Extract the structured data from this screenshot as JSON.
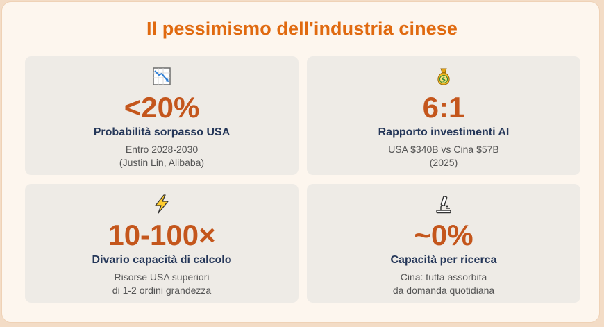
{
  "title": "Il pessimismo dell'industria cinese",
  "cards": [
    {
      "icon": "chart-decreasing-icon",
      "value": "<20%",
      "label": "Probabilità sorpasso USA",
      "lines": [
        "Entro 2028-2030",
        "(Justin Lin, Alibaba)"
      ]
    },
    {
      "icon": "money-bag-icon",
      "value": "6:1",
      "label": "Rapporto investimenti AI",
      "lines": [
        "USA $340B vs Cina $57B",
        "(2025)"
      ]
    },
    {
      "icon": "lightning-icon",
      "value": "10-100×",
      "label": "Divario capacità di calcolo",
      "lines": [
        "Risorse USA superiori",
        "di 1-2 ordini grandezza"
      ]
    },
    {
      "icon": "microscope-icon",
      "value": "~0%",
      "label": "Capacità per ricerca",
      "lines": [
        "Cina: tutta assorbita",
        "da domanda quotidiana"
      ]
    }
  ],
  "colors": {
    "title": "#e06a10",
    "value": "#c4561c",
    "label": "#253759",
    "card_bg": "#eeebe6",
    "page_bg": "#fdf6ee"
  }
}
